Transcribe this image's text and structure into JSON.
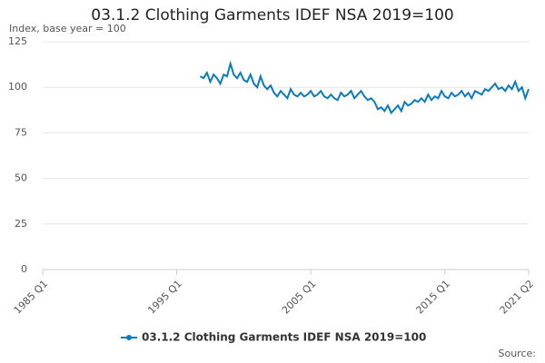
{
  "chart_data": {
    "type": "line",
    "title": "03.1.2 Clothing Garments IDEF NSA 2019=100",
    "subtitle": "Index, base year = 100",
    "source": "Source:",
    "categories": [
      "1985 Q1",
      null,
      null,
      null,
      null,
      null,
      null,
      null,
      null,
      null,
      null,
      null,
      null,
      null,
      null,
      null,
      null,
      null,
      null,
      null,
      null,
      null,
      null,
      null,
      null,
      null,
      null,
      null,
      null,
      null,
      null,
      null,
      null,
      null,
      null,
      null,
      null,
      null,
      null,
      null,
      "1995 Q1",
      null,
      null,
      null,
      null,
      null,
      null,
      null,
      null,
      null,
      null,
      null,
      null,
      null,
      null,
      null,
      null,
      null,
      null,
      null,
      null,
      null,
      null,
      null,
      null,
      null,
      null,
      null,
      null,
      null,
      null,
      null,
      null,
      null,
      null,
      null,
      null,
      null,
      null,
      null,
      "2005 Q1",
      null,
      null,
      null,
      null,
      null,
      null,
      null,
      null,
      null,
      null,
      null,
      null,
      null,
      null,
      null,
      null,
      null,
      null,
      null,
      null,
      null,
      null,
      null,
      null,
      null,
      null,
      null,
      null,
      null,
      null,
      null,
      null,
      null,
      null,
      null,
      null,
      null,
      null,
      null,
      "2015 Q1",
      null,
      null,
      null,
      null,
      null,
      null,
      null,
      null,
      null,
      null,
      null,
      null,
      null,
      null,
      null,
      null,
      null,
      null,
      null,
      null,
      null,
      null,
      null,
      null,
      "2021 Q2"
    ],
    "series": [
      {
        "name": "03.1.2 Clothing Garments IDEF NSA 2019=100",
        "color": "#0a7bbd",
        "values": [
          null,
          null,
          null,
          null,
          null,
          null,
          null,
          null,
          null,
          null,
          null,
          null,
          null,
          null,
          null,
          null,
          null,
          null,
          null,
          null,
          null,
          null,
          null,
          null,
          null,
          null,
          null,
          null,
          null,
          null,
          null,
          null,
          null,
          null,
          null,
          null,
          null,
          null,
          null,
          null,
          null,
          null,
          null,
          null,
          null,
          null,
          null,
          106,
          105,
          108,
          103,
          107,
          105,
          102,
          107,
          106,
          113,
          107,
          105,
          108,
          104,
          103,
          107,
          102,
          100,
          106,
          101,
          99,
          101,
          97,
          95,
          98,
          96,
          94,
          99,
          96,
          95,
          97,
          95,
          96,
          98,
          95,
          96,
          98,
          95,
          94,
          96,
          94,
          93,
          97,
          95,
          96,
          98,
          94,
          96,
          98,
          95,
          93,
          94,
          92,
          88,
          89,
          87,
          90,
          86,
          88,
          90,
          87,
          92,
          90,
          91,
          93,
          92,
          94,
          92,
          96,
          93,
          95,
          94,
          98,
          95,
          94,
          97,
          95,
          96,
          98,
          95,
          97,
          94,
          98,
          97,
          96,
          99,
          98,
          100,
          102,
          99,
          100,
          98,
          101,
          99,
          103,
          98,
          100,
          94,
          99
        ]
      }
    ],
    "ylim": [
      0,
      125
    ],
    "yticks": [
      0,
      25,
      50,
      75,
      100,
      125
    ],
    "grid": true
  }
}
